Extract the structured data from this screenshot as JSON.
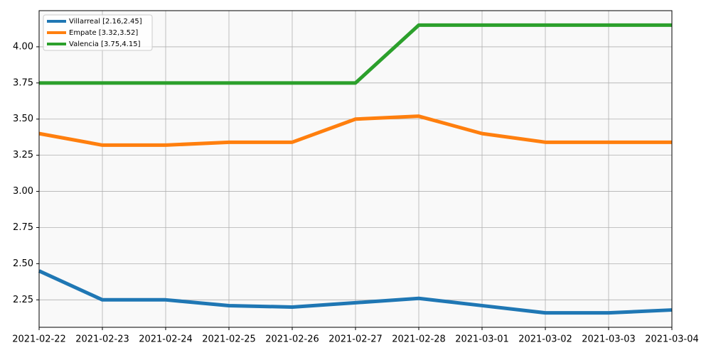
{
  "chart_data": {
    "type": "line",
    "categories": [
      "2021-02-22",
      "2021-02-23",
      "2021-02-24",
      "2021-02-25",
      "2021-02-26",
      "2021-02-27",
      "2021-02-28",
      "2021-03-01",
      "2021-03-02",
      "2021-03-03",
      "2021-03-04"
    ],
    "series": [
      {
        "name": "Villarreal [2.16,2.45]",
        "color": "#1f77b4",
        "values": [
          2.45,
          2.25,
          2.25,
          2.21,
          2.2,
          2.23,
          2.26,
          2.21,
          2.16,
          2.16,
          2.18
        ]
      },
      {
        "name": "Empate [3.32,3.52]",
        "color": "#ff7f0e",
        "values": [
          3.4,
          3.32,
          3.32,
          3.34,
          3.34,
          3.5,
          3.52,
          3.4,
          3.34,
          3.34,
          3.34
        ]
      },
      {
        "name": "Valencia [3.75,4.15]",
        "color": "#2ca02c",
        "values": [
          3.75,
          3.75,
          3.75,
          3.75,
          3.75,
          3.75,
          4.15,
          4.15,
          4.15,
          4.15,
          4.15
        ]
      }
    ],
    "ylim": [
      2.06,
      4.25
    ],
    "yticks": [
      2.25,
      {
        "value": 2.5,
        "label": "2.50"
      },
      2.75,
      {
        "value": 3.0,
        "label": "3.00"
      },
      3.25,
      {
        "value": 3.5,
        "label": "3.50"
      },
      3.75,
      {
        "value": 4.0,
        "label": "4.00"
      }
    ],
    "grid": true,
    "legend": "upper-left",
    "background": "#f9f9f9"
  }
}
